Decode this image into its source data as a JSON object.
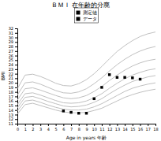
{
  "chart_data": {
    "type": "line",
    "title": "ＢＭＩ 在年齢的分廃",
    "x_label": "Age in years 年齢",
    "y_label": "BMI",
    "x": [
      0,
      1,
      2,
      3,
      4,
      5,
      6,
      7,
      8,
      9,
      10,
      11,
      12,
      13,
      14,
      15,
      16,
      17,
      18
    ],
    "xlim": [
      0,
      18
    ],
    "ylim": [
      11,
      32
    ],
    "xticks": [
      0,
      1,
      2,
      3,
      4,
      5,
      6,
      7,
      8,
      9,
      10,
      11,
      12,
      13,
      14,
      15,
      16,
      17,
      18
    ],
    "yticks": [
      11,
      12,
      13,
      14,
      15,
      16,
      17,
      18,
      19,
      20,
      21,
      22,
      23,
      24,
      25,
      26,
      27,
      28,
      29,
      30,
      31,
      32
    ],
    "grid": false,
    "legend": "top",
    "legend_entries": [
      {
        "name": "測定値",
        "color": "#000000"
      },
      {
        "name": "データ",
        "color": "#000000"
      }
    ],
    "series": [
      {
        "color": "#c0c0c0",
        "values": [
          13.1,
          15.2,
          15.5,
          15.0,
          14.5,
          14.0,
          13.6,
          13.4,
          13.4,
          13.5,
          13.9,
          14.4,
          15.2,
          16.0,
          16.8,
          17.4,
          17.9,
          18.3,
          18.6
        ]
      },
      {
        "color": "#c0c0c0",
        "values": [
          13.8,
          16.0,
          16.2,
          15.7,
          15.1,
          14.6,
          14.2,
          14.0,
          14.0,
          14.2,
          14.7,
          15.4,
          16.3,
          17.2,
          18.1,
          18.8,
          19.3,
          19.7,
          20.0
        ]
      },
      {
        "color": "#c0c0c0",
        "values": [
          14.5,
          16.8,
          17.0,
          16.5,
          15.9,
          15.4,
          14.9,
          14.7,
          14.8,
          15.1,
          15.7,
          16.5,
          17.6,
          18.6,
          19.5,
          20.3,
          20.8,
          21.3,
          21.6
        ]
      },
      {
        "color": "#c0c0c0",
        "values": [
          15.2,
          17.6,
          17.8,
          17.3,
          16.7,
          16.1,
          15.6,
          15.5,
          15.6,
          16.0,
          16.7,
          17.6,
          18.8,
          19.9,
          20.9,
          21.7,
          22.3,
          22.8,
          23.1
        ]
      },
      {
        "color": "#c0c0c0",
        "values": [
          16.2,
          18.7,
          18.9,
          18.4,
          17.8,
          17.2,
          16.7,
          16.5,
          16.7,
          17.2,
          18.1,
          19.2,
          20.5,
          21.7,
          22.8,
          23.7,
          24.4,
          24.9,
          25.2
        ]
      },
      {
        "color": "#c0c0c0",
        "values": [
          17.3,
          20.0,
          20.2,
          19.7,
          19.0,
          18.3,
          17.8,
          17.7,
          18.0,
          18.7,
          19.8,
          21.1,
          22.6,
          24.0,
          25.2,
          26.2,
          27.0,
          27.6,
          28.0
        ]
      },
      {
        "color": "#c0c0c0",
        "values": [
          18.7,
          21.7,
          21.9,
          21.4,
          20.7,
          19.9,
          19.4,
          19.3,
          19.8,
          20.7,
          22.0,
          23.6,
          25.3,
          26.9,
          28.2,
          29.3,
          30.2,
          30.8,
          31.2
        ]
      },
      {
        "type": "scatter",
        "marker": "square",
        "color": "#000000",
        "x": [
          6,
          7,
          8,
          9,
          10,
          11,
          12,
          13,
          14,
          15,
          16
        ],
        "values": [
          13.8,
          13.5,
          13.3,
          13.3,
          16.5,
          19.0,
          21.8,
          21.2,
          21.2,
          21.1,
          20.8
        ]
      }
    ]
  }
}
